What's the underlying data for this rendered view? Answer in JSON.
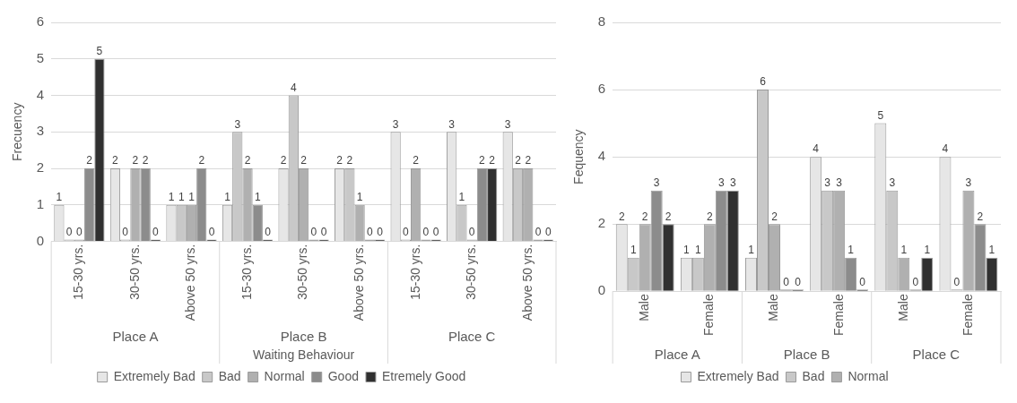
{
  "chart_data": [
    {
      "type": "bar",
      "xlabel": "Waiting Behaviour",
      "ylabel": "Frecuency",
      "categories": [
        "15-30 yrs.",
        "30-50 yrs.",
        "Above 50 yrs.",
        "15-30 yrs.",
        "30-50 yrs.",
        "Above 50 yrs.",
        "15-30 yrs.",
        "30-50 yrs.",
        "Above 50 yrs."
      ],
      "series": [
        {
          "name": "Extremely Bad",
          "color": "#e6e6e6",
          "values": [
            1,
            2,
            1,
            1,
            2,
            2,
            3,
            3,
            3
          ]
        },
        {
          "name": "Bad",
          "color": "#c8c8c8",
          "values": [
            0,
            0,
            1,
            3,
            4,
            2,
            0,
            1,
            2
          ]
        },
        {
          "name": "Normal",
          "color": "#b0b0b0",
          "values": [
            0,
            2,
            1,
            2,
            2,
            1,
            2,
            0,
            2
          ]
        },
        {
          "name": "Good",
          "color": "#8c8c8c",
          "values": [
            2,
            2,
            2,
            1,
            0,
            0,
            0,
            2,
            0
          ]
        },
        {
          "name": "Etremely Good",
          "color": "#303030",
          "values": [
            5,
            0,
            0,
            0,
            0,
            0,
            0,
            2,
            0
          ]
        }
      ],
      "ylim": [
        0,
        6
      ],
      "yticks": [
        0,
        1,
        2,
        3,
        4,
        5,
        6
      ],
      "grid": "y",
      "legend": "bottom",
      "data_labels": true,
      "annotations": [
        "Place A",
        "Place B",
        "Place C"
      ]
    },
    {
      "type": "bar",
      "ylabel": "Fequency",
      "categories": [
        "Male",
        "Female",
        "Male",
        "Female",
        "Male",
        "Female"
      ],
      "series": [
        {
          "name": "Extremely Bad",
          "color": "#e6e6e6",
          "values": [
            2,
            1,
            1,
            4,
            5,
            4
          ]
        },
        {
          "name": "Bad",
          "color": "#c8c8c8",
          "values": [
            1,
            1,
            6,
            3,
            3,
            0
          ]
        },
        {
          "name": "Normal",
          "color": "#b0b0b0",
          "values": [
            2,
            2,
            2,
            3,
            1,
            3
          ]
        },
        {
          "color": "#8c8c8c",
          "values": [
            3,
            3,
            0,
            1,
            0,
            2
          ]
        },
        {
          "color": "#303030",
          "values": [
            2,
            3,
            0,
            0,
            1,
            1
          ]
        }
      ],
      "ylim": [
        0,
        8
      ],
      "yticks": [
        0,
        2,
        4,
        6,
        8
      ],
      "grid": "y",
      "legend": "bottom",
      "data_labels": true,
      "annotations": [
        "Place A",
        "Place B",
        "Place C"
      ]
    }
  ]
}
